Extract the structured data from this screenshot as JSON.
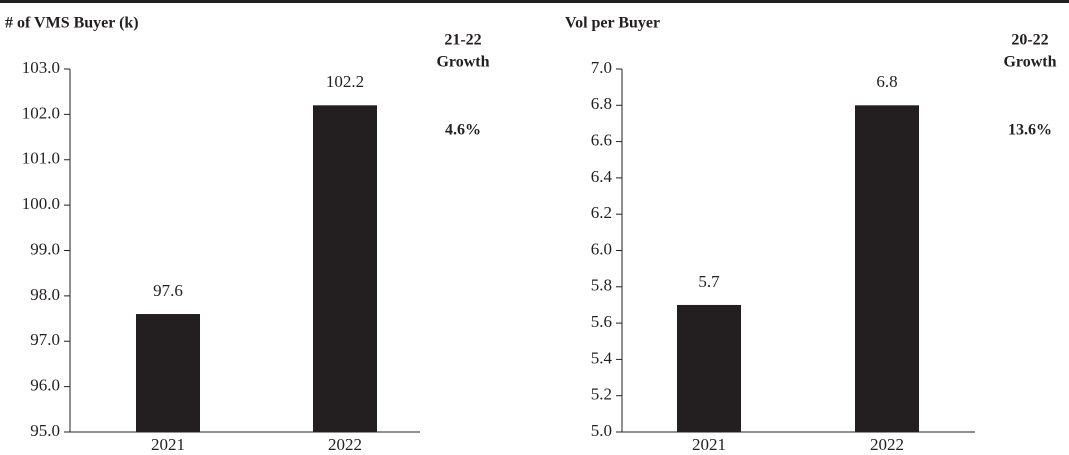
{
  "chart_data": [
    {
      "type": "bar",
      "title": "# of VMS Buyer (k)",
      "categories": [
        "2021",
        "2022"
      ],
      "values": [
        97.6,
        102.2
      ],
      "color": "#231f20",
      "ylim": [
        95,
        103
      ],
      "yticks": [
        {
          "value": 95,
          "label": "95.0"
        },
        {
          "value": 96,
          "label": "96.0"
        },
        {
          "value": 97,
          "label": "97.0"
        },
        {
          "value": 98,
          "label": "98.0"
        },
        {
          "value": 99,
          "label": "99.0"
        },
        {
          "value": 100,
          "label": "100.0"
        },
        {
          "value": 101,
          "label": "101.0"
        },
        {
          "value": 102,
          "label": "102.0"
        },
        {
          "value": 103,
          "label": "103.0"
        }
      ],
      "annotation": {
        "lines": [
          "21-22",
          "Growth"
        ],
        "value": "4.6%"
      }
    },
    {
      "type": "bar",
      "title": "Vol per Buyer",
      "categories": [
        "2021",
        "2022"
      ],
      "values": [
        5.7,
        6.8
      ],
      "color": "#231f20",
      "ylim": [
        5,
        7
      ],
      "yticks": [
        {
          "value": 5,
          "label": "5.0"
        },
        {
          "value": 5.2,
          "label": "5.2"
        },
        {
          "value": 5.4,
          "label": "5.4"
        },
        {
          "value": 5.6,
          "label": "5.6"
        },
        {
          "value": 5.8,
          "label": "5.8"
        },
        {
          "value": 6,
          "label": "6.0"
        },
        {
          "value": 6.2,
          "label": "6.2"
        },
        {
          "value": 6.4,
          "label": "6.4"
        },
        {
          "value": 6.6,
          "label": "6.6"
        },
        {
          "value": 6.8,
          "label": "6.8"
        },
        {
          "value": 7,
          "label": "7.0"
        }
      ],
      "annotation": {
        "lines": [
          "20-22",
          "Growth"
        ],
        "value": "13.6%"
      }
    }
  ]
}
